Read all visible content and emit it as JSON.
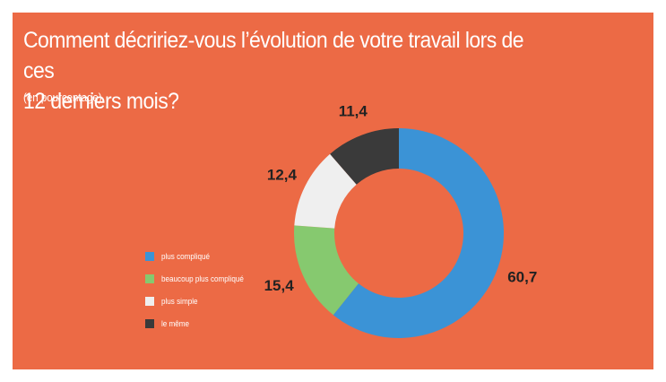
{
  "chart_data": {
    "type": "pie",
    "title_line1": "Comment décririez-vous l’évolution de votre travail lors de ces",
    "title_line2": "12 derniers mois?",
    "subtitle": "(en pourcentage)",
    "legend_position": "left",
    "categories": [
      "plus compliqué",
      "beaucoup plus compliqué",
      "plus simple",
      "le même"
    ],
    "values": [
      60.7,
      15.4,
      12.4,
      11.4
    ],
    "value_labels": [
      "60,7",
      "15,4",
      "12,4",
      "11,4"
    ],
    "colors": [
      "#3b93d6",
      "#86c96f",
      "#efefef",
      "#3a3a3a"
    ],
    "donut": true
  }
}
